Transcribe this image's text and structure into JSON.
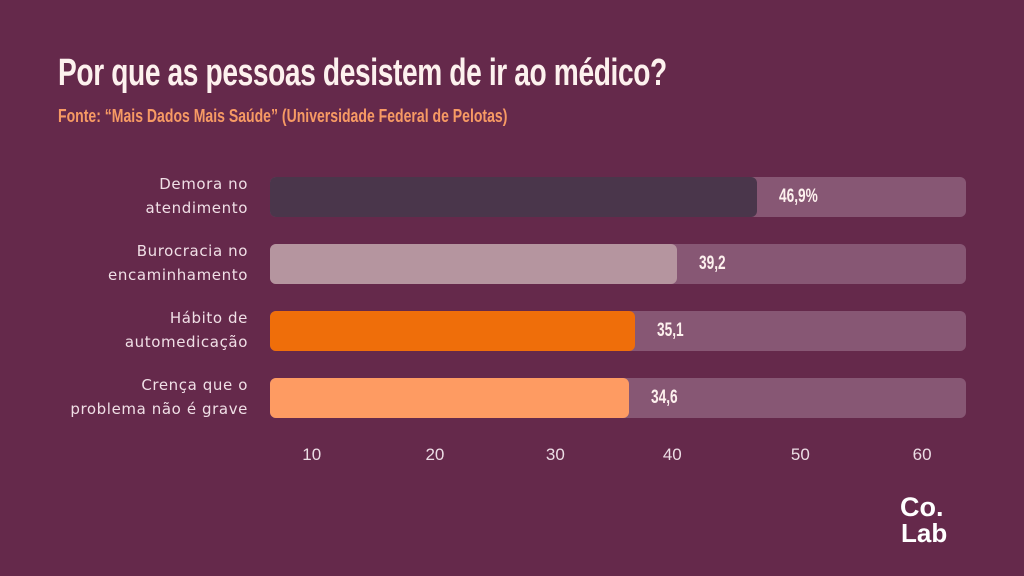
{
  "header": {
    "title": "Por que as pessoas desistem de ir ao médico?",
    "subtitle": "Fonte: “Mais Dados Mais Saúde” (Universidade Federal de Pelotas)"
  },
  "chart_data": {
    "type": "bar",
    "orientation": "horizontal",
    "title": "Por que as pessoas desistem de ir ao médico?",
    "subtitle": "Fonte: “Mais Dados Mais Saúde” (Universidade Federal de Pelotas)",
    "categories": [
      [
        "Demora no",
        "atendimento"
      ],
      [
        "Burocracia no",
        "encaminhamento"
      ],
      [
        "Hábito de",
        "automedicação"
      ],
      [
        "Crença que o",
        "problema não é grave"
      ]
    ],
    "values": [
      46.9,
      39.2,
      35.1,
      34.6
    ],
    "value_labels": [
      "46,9%",
      "39,2",
      "35,1",
      "34,6"
    ],
    "bar_colors": [
      "#4a364b",
      "#b5959f",
      "#ef6e0a",
      "#fe9b62"
    ],
    "track_color": "#875774",
    "xlabel": "",
    "ylabel": "",
    "xlim": [
      0,
      67
    ],
    "x_tick_labels": [
      "10",
      "20",
      "30",
      "40",
      "50",
      "60"
    ],
    "x_tick_positions": [
      0.06,
      0.237,
      0.41,
      0.578,
      0.762,
      0.937
    ],
    "grid": false,
    "legend": "none"
  },
  "colors": {
    "background": "#65294b",
    "title": "#fdf1ee",
    "subtitle": "#f79a64"
  },
  "logo": {
    "line1": "Co.",
    "line2": "Lab",
    "icon": "colab-logo-icon"
  }
}
